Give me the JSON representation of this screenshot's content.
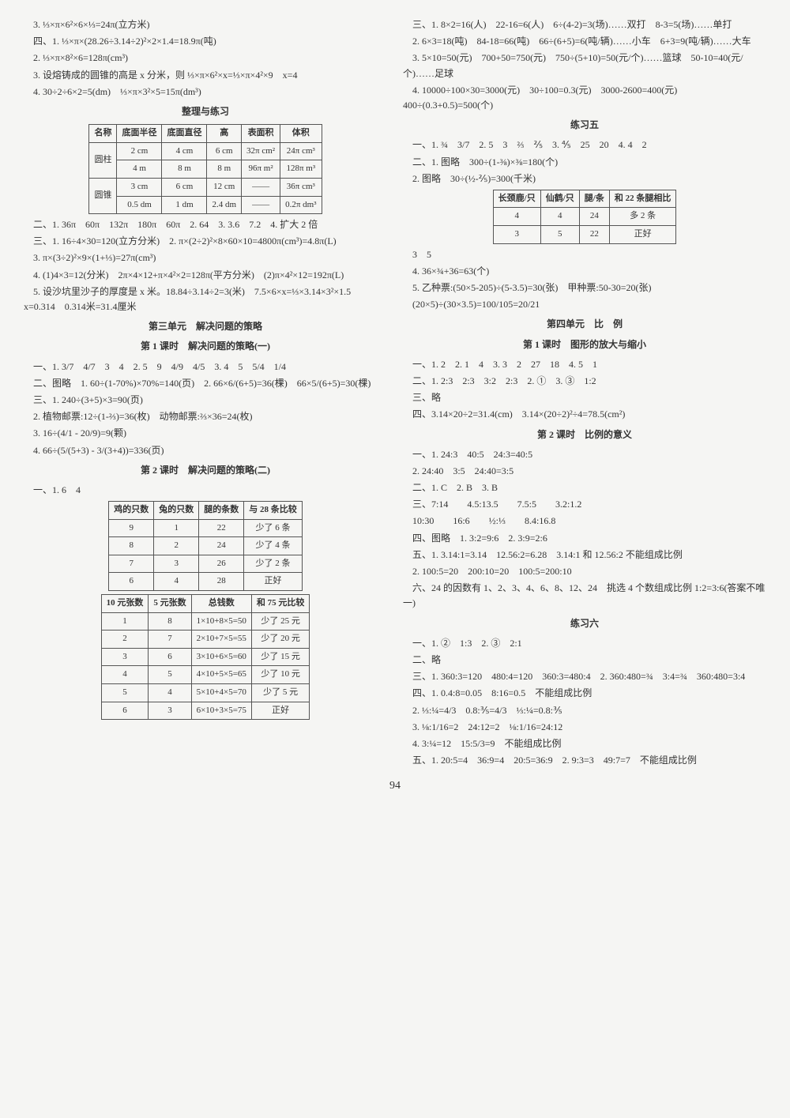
{
  "left": {
    "l3": "3. ⅓×π×6²×6×⅓=24π(立方米)",
    "s4_1": "四、1. ⅓×π×(28.26÷3.14÷2)²×2×1.4=18.9π(吨)",
    "s4_2": "2. ⅓×π×8²×6=128π(cm³)",
    "s4_3": "3. 设熔铸成的圆锥的高是 x 分米，则 ⅓×π×6²×x=⅓×π×4²×9　x=4",
    "s4_4": "4. 30÷2÷6×2=5(dm)　⅓×π×3²×5=15π(dm³)",
    "tidy_title": "整理与练习",
    "table1": {
      "headers": [
        "名称",
        "底面半径",
        "底面直径",
        "高",
        "表面积",
        "体积"
      ],
      "rows": [
        [
          "圆柱",
          "2 cm",
          "4 cm",
          "6 cm",
          "32π cm²",
          "24π cm³"
        ],
        [
          "",
          "4 m",
          "8 m",
          "8 m",
          "96π m²",
          "128π m³"
        ],
        [
          "圆锥",
          "3 cm",
          "6 cm",
          "12 cm",
          "——",
          "36π cm³"
        ],
        [
          "",
          "0.5 dm",
          "1 dm",
          "2.4 dm",
          "——",
          "0.2π dm³"
        ]
      ]
    },
    "l2_1": "二、1. 36π　60π　132π　180π　60π　2. 64　3. 3.6　7.2　4. 扩大 2 倍",
    "l3_1": "三、1. 16÷4×30=120(立方分米)　2. π×(2÷2)²×8×60×10=4800π(cm³)=4.8π(L)",
    "l3_2": "3. π×(3÷2)²×9×(1+⅓)=27π(cm³)",
    "l3_3": "4. (1)4×3=12(分米)　2π×4×12+π×4²×2=128π(平方分米)　(2)π×4²×12=192π(L)",
    "l3_4": "5. 设沙坑里沙子的厚度是 x 米。18.84÷3.14÷2=3(米)　7.5×6×x=⅓×3.14×3²×1.5　x=0.314　0.314米=31.4厘米",
    "u3_title": "第三单元　解决问题的策略",
    "u3_l1_title": "第 1 课时　解决问题的策略(一)",
    "u3_1_1": "一、1. 3/7　4/7　3　4　2. 5　9　4/9　4/5　3. 4　5　5/4　1/4",
    "u3_1_2": "二、图略　1. 60÷(1-70%)×70%=140(页)　2. 66×6/(6+5)=36(棵)　66×5/(6+5)=30(棵)",
    "u3_1_3": "三、1. 240÷(3+5)×3=90(页)",
    "u3_1_4": "2. 植物邮票:12÷(1-⅔)=36(枚)　动物邮票:⅔×36=24(枚)",
    "u3_1_5": "3. 16÷(4/1 - 20/9)=9(颗)",
    "u3_1_6": "4. 66÷(5/(5+3) - 3/(3+4))=336(页)",
    "u3_l2_title": "第 2 课时　解决问题的策略(二)",
    "u3_2_1": "一、1. 6　4",
    "table2": {
      "headers": [
        "鸡的只数",
        "兔的只数",
        "腿的条数",
        "与 28 条比较"
      ],
      "rows": [
        [
          "9",
          "1",
          "22",
          "少了 6 条"
        ],
        [
          "8",
          "2",
          "24",
          "少了 4 条"
        ],
        [
          "7",
          "3",
          "26",
          "少了 2 条"
        ],
        [
          "6",
          "4",
          "28",
          "正好"
        ]
      ]
    },
    "table3": {
      "headers": [
        "10 元张数",
        "5 元张数",
        "总钱数",
        "和 75 元比较"
      ],
      "rows": [
        [
          "1",
          "8",
          "1×10+8×5=50",
          "少了 25 元"
        ],
        [
          "2",
          "7",
          "2×10+7×5=55",
          "少了 20 元"
        ],
        [
          "3",
          "6",
          "3×10+6×5=60",
          "少了 15 元"
        ],
        [
          "4",
          "5",
          "4×10+5×5=65",
          "少了 10 元"
        ],
        [
          "5",
          "4",
          "5×10+4×5=70",
          "少了 5 元"
        ],
        [
          "6",
          "3",
          "6×10+3×5=75",
          "正好"
        ]
      ]
    }
  },
  "right": {
    "r3_1": "三、1. 8×2=16(人)　22-16=6(人)　6÷(4-2)=3(场)……双打　8-3=5(场)……单打",
    "r3_2": "2. 6×3=18(吨)　84-18=66(吨)　66÷(6+5)=6(吨/辆)……小车　6+3=9(吨/辆)……大车",
    "r3_3": "3. 5×10=50(元)　700+50=750(元)　750÷(5+10)=50(元/个)……篮球　50-10=40(元/个)……足球",
    "r3_4": "4. 10000÷100×30=3000(元)　30÷100=0.3(元)　3000-2600=400(元)　400÷(0.3+0.5)=500(个)",
    "ex5_title": "练习五",
    "ex5_1": "一、1. ¾　3/7　2. 5　3　⅔　⅖　3. ⅘　25　20　4. 4　2",
    "ex5_2": "二、1. 图略　300÷(1-⅜)×⅜=180(个)",
    "ex5_2b": "2. 图略　30÷(½-⅖)=300(千米)",
    "table4": {
      "headers": [
        "长颈鹿/只",
        "仙鹤/只",
        "腿/条",
        "和 22 条腿相比"
      ],
      "rows": [
        [
          "4",
          "4",
          "24",
          "多 2 条"
        ],
        [
          "3",
          "5",
          "22",
          "正好"
        ]
      ]
    },
    "ex5_3": "3　5",
    "ex5_4": "4. 36×¾+36=63(个)",
    "ex5_5": "5. 乙种票:(50×5-205)÷(5-3.5)=30(张)　甲种票:50-30=20(张)",
    "ex5_6": "(20×5)÷(30×3.5)=100/105=20/21",
    "u4_title": "第四单元　比　例",
    "u4_l1_title": "第 1 课时　图形的放大与缩小",
    "u4_1_1": "一、1. 2　2. 1　4　3. 3　2　27　18　4. 5　1",
    "u4_1_2": "二、1. 2:3　2:3　3:2　2:3　2. ①　3. ③　1:2",
    "u4_1_3": "三、略",
    "u4_1_4": "四、3.14×20÷2=31.4(cm)　3.14×(20÷2)²÷4=78.5(cm²)",
    "u4_l2_title": "第 2 课时　比例的意义",
    "u4_2_1": "一、1. 24:3　40:5　24:3=40:5",
    "u4_2_1b": "2. 24:40　3:5　24:40=3:5",
    "u4_2_2": "二、1. C　2. B　3. B",
    "u4_2_3": "三、7:14　　4.5:13.5　　7.5:5　　3.2:1.2",
    "u4_2_3b": "10:30　　16:6　　½:⅓　　8.4:16.8",
    "u4_2_4": "四、图略　1. 3:2=9:6　2. 3:9=2:6",
    "u4_2_5": "五、1. 3.14:1=3.14　12.56:2=6.28　3.14:1 和 12.56:2 不能组成比例",
    "u4_2_5b": "2. 100:5=20　200:10=20　100:5=200:10",
    "u4_2_6": "六、24 的因数有 1、2、3、4、6、8、12、24　挑选 4 个数组成比例 1:2=3:6(答案不唯一)",
    "ex6_title": "练习六",
    "ex6_1": "一、1. ②　1:3　2. ③　2:1",
    "ex6_2": "二、略",
    "ex6_3": "三、1. 360:3=120　480:4=120　360:3=480:4　2. 360:480=¾　3:4=¾　360:480=3:4",
    "ex6_4": "四、1. 0.4:8=0.05　8:16=0.5　不能组成比例",
    "ex6_4b": "2. ⅓:¼=4/3　0.8:⅗=4/3　⅓:¼=0.8:⅗",
    "ex6_4c": "3. ⅛:1/16=2　24:12=2　⅛:1/16=24:12",
    "ex6_4d": "4. 3:¼=12　15:5/3=9　不能组成比例",
    "ex6_5": "五、1. 20:5=4　36:9=4　20:5=36:9　2. 9:3=3　49:7=7　不能组成比例"
  },
  "pageno": "94"
}
